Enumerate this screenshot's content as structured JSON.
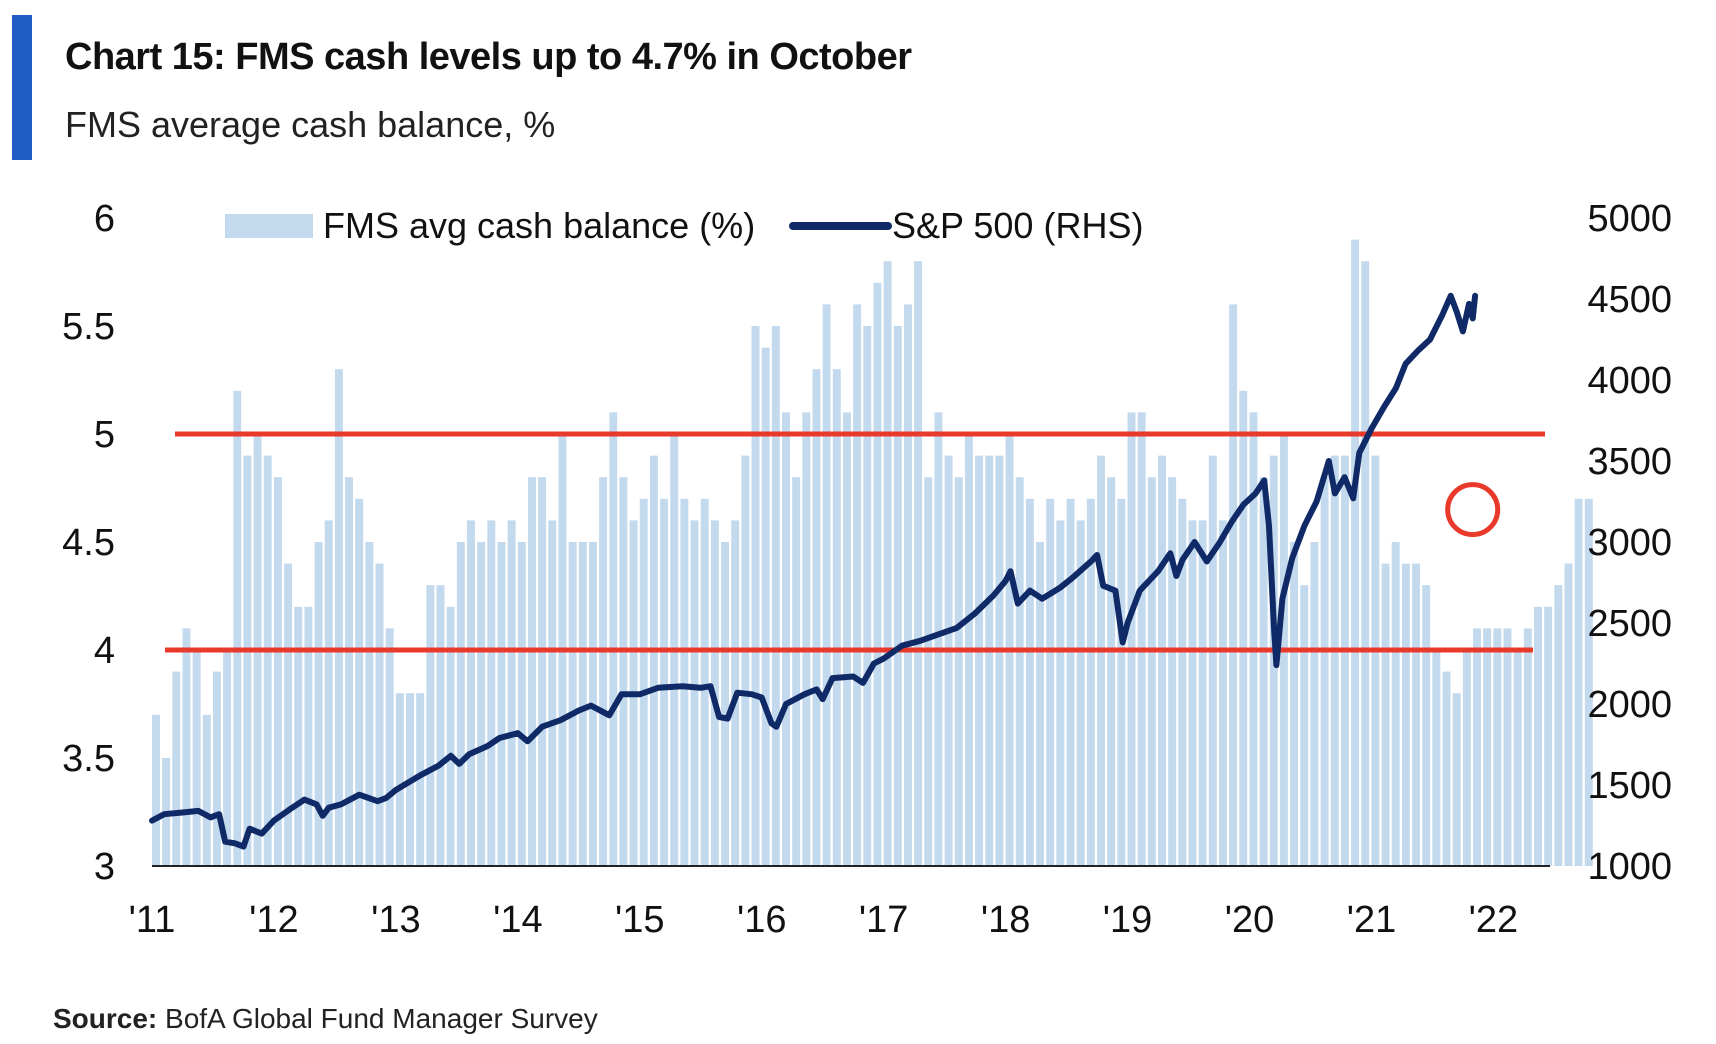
{
  "header": {
    "title": "Chart 15: FMS cash levels up to 4.7% in October",
    "subtitle": "FMS average cash balance, %",
    "accent_color": "#1f5cc4"
  },
  "footer": {
    "source_label": "Source:",
    "source_text": " BofA Global Fund Manager Survey"
  },
  "chart_data": {
    "type": "bar+line",
    "title": "Chart 15: FMS cash levels up to 4.7% in October",
    "subtitle": "FMS average cash balance, %",
    "x_ticks": [
      "'11",
      "'12",
      "'13",
      "'14",
      "'15",
      "'16",
      "'17",
      "'18",
      "'19",
      "'20",
      "'21",
      "'22"
    ],
    "x_range": [
      2011.0,
      2022.3
    ],
    "y_left": {
      "label": "FMS avg cash balance (%)",
      "ylim": [
        3,
        6
      ],
      "ticks": [
        "3",
        "3.5",
        "4",
        "4.5",
        "5",
        "5.5",
        "6"
      ]
    },
    "y_right": {
      "label": "S&P 500 (RHS)",
      "ylim": [
        1000,
        5000
      ],
      "ticks": [
        "1000",
        "1500",
        "2000",
        "2500",
        "3000",
        "3500",
        "4000",
        "4500",
        "5000"
      ]
    },
    "legend": {
      "bars_label": "FMS avg cash balance (%)",
      "line_label": "S&P 500 (RHS)",
      "position": "top"
    },
    "reference_lines": [
      {
        "axis": "left",
        "value": 5.0,
        "color": "#e8392a"
      },
      {
        "axis": "left",
        "value": 4.0,
        "color": "#e8392a"
      }
    ],
    "highlight": {
      "x": 2021.83,
      "y": 4.65,
      "color": "#e8392a"
    },
    "colors": {
      "bars": "#c3d9ed",
      "line": "#0f2a66",
      "ref_lines": "#e8392a"
    },
    "bar_series": {
      "name": "FMS avg cash balance (%)",
      "start": 2011.0,
      "step": 0.08333,
      "values": [
        3.7,
        3.5,
        3.9,
        4.1,
        4.0,
        3.7,
        3.9,
        4.0,
        5.2,
        4.9,
        5.0,
        4.9,
        4.8,
        4.4,
        4.2,
        4.2,
        4.5,
        4.6,
        5.3,
        4.8,
        4.7,
        4.5,
        4.4,
        4.1,
        3.8,
        3.8,
        3.8,
        4.3,
        4.3,
        4.2,
        4.5,
        4.6,
        4.5,
        4.6,
        4.5,
        4.6,
        4.5,
        4.8,
        4.8,
        4.6,
        5.0,
        4.5,
        4.5,
        4.5,
        4.8,
        5.1,
        4.8,
        4.6,
        4.7,
        4.9,
        4.7,
        5.0,
        4.7,
        4.6,
        4.7,
        4.6,
        4.5,
        4.6,
        4.9,
        5.5,
        5.4,
        5.5,
        5.1,
        4.8,
        5.1,
        5.3,
        5.6,
        5.3,
        5.1,
        5.6,
        5.5,
        5.7,
        5.8,
        5.5,
        5.6,
        5.8,
        4.8,
        5.1,
        4.9,
        4.8,
        5.0,
        4.9,
        4.9,
        4.9,
        5.0,
        4.8,
        4.7,
        4.5,
        4.7,
        4.6,
        4.7,
        4.6,
        4.7,
        4.9,
        4.8,
        4.7,
        5.1,
        5.1,
        4.8,
        4.9,
        4.8,
        4.7,
        4.6,
        4.6,
        4.9,
        4.6,
        5.6,
        5.2,
        5.1,
        4.8,
        4.9,
        5.0,
        4.5,
        4.3,
        4.5,
        4.8,
        4.9,
        4.9,
        5.9,
        5.8,
        4.9,
        4.4,
        4.5,
        4.4,
        4.4,
        4.3,
        4.0,
        3.9,
        3.8,
        4.0,
        4.1,
        4.1,
        4.1,
        4.1,
        4.0,
        4.1,
        4.2,
        4.2,
        4.3,
        4.4,
        4.7,
        4.7
      ]
    },
    "line_series": {
      "name": "S&P 500 (RHS)",
      "points": [
        [
          2011.0,
          1280
        ],
        [
          2011.1,
          1320
        ],
        [
          2011.25,
          1330
        ],
        [
          2011.38,
          1340
        ],
        [
          2011.48,
          1300
        ],
        [
          2011.55,
          1320
        ],
        [
          2011.6,
          1150
        ],
        [
          2011.68,
          1140
        ],
        [
          2011.75,
          1120
        ],
        [
          2011.8,
          1230
        ],
        [
          2011.9,
          1200
        ],
        [
          2012.0,
          1280
        ],
        [
          2012.15,
          1360
        ],
        [
          2012.25,
          1410
        ],
        [
          2012.35,
          1380
        ],
        [
          2012.4,
          1310
        ],
        [
          2012.45,
          1360
        ],
        [
          2012.55,
          1380
        ],
        [
          2012.7,
          1440
        ],
        [
          2012.85,
          1400
        ],
        [
          2012.92,
          1420
        ],
        [
          2013.0,
          1470
        ],
        [
          2013.2,
          1560
        ],
        [
          2013.35,
          1620
        ],
        [
          2013.45,
          1680
        ],
        [
          2013.52,
          1630
        ],
        [
          2013.6,
          1690
        ],
        [
          2013.75,
          1740
        ],
        [
          2013.85,
          1790
        ],
        [
          2014.0,
          1820
        ],
        [
          2014.08,
          1770
        ],
        [
          2014.2,
          1860
        ],
        [
          2014.35,
          1900
        ],
        [
          2014.5,
          1960
        ],
        [
          2014.6,
          1990
        ],
        [
          2014.75,
          1930
        ],
        [
          2014.85,
          2060
        ],
        [
          2015.0,
          2060
        ],
        [
          2015.15,
          2100
        ],
        [
          2015.35,
          2110
        ],
        [
          2015.5,
          2100
        ],
        [
          2015.58,
          2110
        ],
        [
          2015.65,
          1920
        ],
        [
          2015.72,
          1910
        ],
        [
          2015.8,
          2070
        ],
        [
          2015.92,
          2060
        ],
        [
          2016.0,
          2040
        ],
        [
          2016.08,
          1880
        ],
        [
          2016.12,
          1860
        ],
        [
          2016.2,
          2000
        ],
        [
          2016.35,
          2060
        ],
        [
          2016.45,
          2090
        ],
        [
          2016.5,
          2030
        ],
        [
          2016.58,
          2160
        ],
        [
          2016.75,
          2170
        ],
        [
          2016.83,
          2130
        ],
        [
          2016.92,
          2250
        ],
        [
          2017.0,
          2280
        ],
        [
          2017.15,
          2360
        ],
        [
          2017.3,
          2390
        ],
        [
          2017.45,
          2430
        ],
        [
          2017.6,
          2470
        ],
        [
          2017.75,
          2560
        ],
        [
          2017.9,
          2670
        ],
        [
          2018.0,
          2760
        ],
        [
          2018.04,
          2820
        ],
        [
          2018.1,
          2620
        ],
        [
          2018.2,
          2700
        ],
        [
          2018.3,
          2650
        ],
        [
          2018.45,
          2720
        ],
        [
          2018.55,
          2780
        ],
        [
          2018.7,
          2880
        ],
        [
          2018.75,
          2920
        ],
        [
          2018.8,
          2730
        ],
        [
          2018.9,
          2700
        ],
        [
          2018.96,
          2380
        ],
        [
          2019.0,
          2500
        ],
        [
          2019.1,
          2700
        ],
        [
          2019.25,
          2820
        ],
        [
          2019.35,
          2930
        ],
        [
          2019.4,
          2790
        ],
        [
          2019.45,
          2890
        ],
        [
          2019.55,
          3000
        ],
        [
          2019.65,
          2880
        ],
        [
          2019.75,
          2990
        ],
        [
          2019.85,
          3120
        ],
        [
          2019.95,
          3230
        ],
        [
          2020.05,
          3300
        ],
        [
          2020.12,
          3380
        ],
        [
          2020.16,
          3100
        ],
        [
          2020.2,
          2480
        ],
        [
          2020.22,
          2240
        ],
        [
          2020.27,
          2650
        ],
        [
          2020.35,
          2900
        ],
        [
          2020.45,
          3100
        ],
        [
          2020.55,
          3250
        ],
        [
          2020.65,
          3500
        ],
        [
          2020.7,
          3300
        ],
        [
          2020.78,
          3400
        ],
        [
          2020.85,
          3270
        ],
        [
          2020.9,
          3550
        ],
        [
          2021.0,
          3700
        ],
        [
          2021.1,
          3830
        ],
        [
          2021.2,
          3950
        ],
        [
          2021.28,
          4100
        ],
        [
          2021.38,
          4180
        ],
        [
          2021.48,
          4250
        ],
        [
          2021.58,
          4400
        ],
        [
          2021.65,
          4520
        ],
        [
          2021.7,
          4420
        ],
        [
          2021.75,
          4300
        ],
        [
          2021.8,
          4470
        ],
        [
          2021.83,
          4380
        ],
        [
          2021.85,
          4520
        ]
      ]
    }
  }
}
